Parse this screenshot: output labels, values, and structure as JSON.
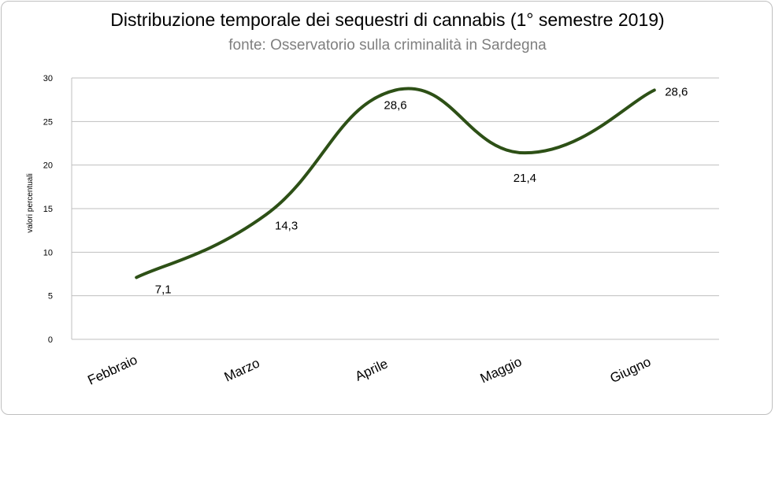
{
  "chart_data": {
    "type": "line",
    "title": "Distribuzione temporale dei sequestri di cannabis (1° semestre  2019)",
    "subtitle": "fonte: Osservatorio sulla criminalità in Sardegna",
    "ylabel": "valori percentuali",
    "xlabel": "",
    "categories": [
      "Febbraio",
      "Marzo",
      "Aprile",
      "Maggio",
      "Giugno"
    ],
    "series": [
      {
        "values": [
          7.1,
          14.3,
          28.6,
          21.4,
          28.6
        ],
        "labels": [
          "7,1",
          "14,3",
          "28,6",
          "21,4",
          "28,6"
        ],
        "color": "#2d5016"
      }
    ],
    "ylim": [
      0,
      30
    ],
    "yticks": [
      0,
      5,
      10,
      15,
      20,
      25,
      30
    ],
    "grid": true,
    "smooth": true
  }
}
